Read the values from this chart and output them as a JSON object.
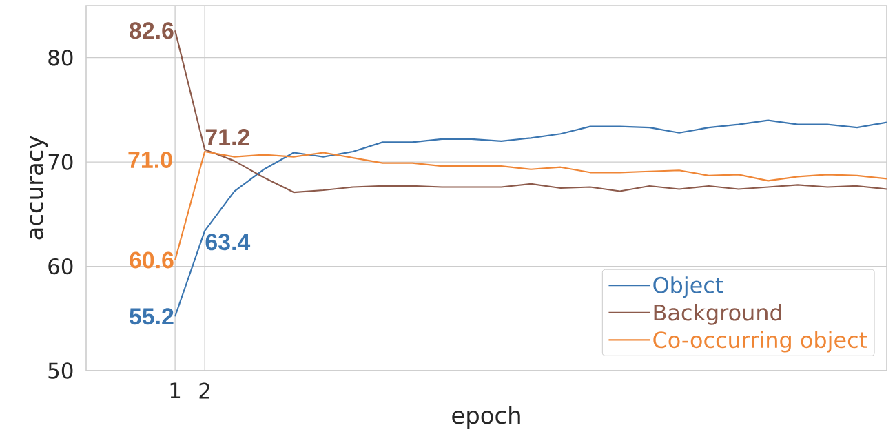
{
  "chart_data": {
    "type": "line",
    "xlabel": "epoch",
    "ylabel": "accuracy",
    "x": [
      1,
      2,
      3,
      4,
      5,
      6,
      7,
      8,
      9,
      10,
      11,
      12,
      13,
      14,
      15,
      16,
      17,
      18,
      19,
      20,
      21,
      22,
      23,
      24,
      25
    ],
    "xlim": [
      -2,
      25
    ],
    "xticks": [
      1,
      2
    ],
    "ylim": [
      50,
      85
    ],
    "yticks": [
      50,
      60,
      70,
      80
    ],
    "grid": true,
    "legend": "bottom right",
    "line_style": "solid",
    "series": [
      {
        "name": "Object",
        "color": "#3a75b0",
        "values": [
          55.2,
          63.4,
          67.2,
          69.3,
          70.9,
          70.5,
          71.0,
          71.9,
          71.9,
          72.2,
          72.2,
          72.0,
          72.3,
          72.7,
          73.4,
          73.4,
          73.3,
          72.8,
          73.3,
          73.6,
          74.0,
          73.6,
          73.6,
          73.3,
          73.8
        ],
        "value_labels": [
          "55.2",
          "63.4",
          null,
          null,
          null,
          null,
          null,
          null,
          null,
          null,
          null,
          null,
          null,
          null,
          null,
          null,
          null,
          null,
          null,
          null,
          null,
          null,
          null,
          null,
          null
        ]
      },
      {
        "name": "Background",
        "color": "#8c5a4b",
        "values": [
          82.6,
          71.2,
          70.1,
          68.5,
          67.1,
          67.3,
          67.6,
          67.7,
          67.7,
          67.6,
          67.6,
          67.6,
          67.9,
          67.5,
          67.6,
          67.2,
          67.7,
          67.4,
          67.7,
          67.4,
          67.6,
          67.8,
          67.6,
          67.7,
          67.4
        ],
        "value_labels": [
          "82.6",
          "71.2",
          null,
          null,
          null,
          null,
          null,
          null,
          null,
          null,
          null,
          null,
          null,
          null,
          null,
          null,
          null,
          null,
          null,
          null,
          null,
          null,
          null,
          null,
          null
        ]
      },
      {
        "name": "Co-occurring object",
        "color": "#ef8636",
        "values": [
          60.6,
          71.0,
          70.5,
          70.7,
          70.5,
          70.9,
          70.4,
          69.9,
          69.9,
          69.6,
          69.6,
          69.6,
          69.3,
          69.5,
          69.0,
          69.0,
          69.1,
          69.2,
          68.7,
          68.8,
          68.2,
          68.6,
          68.8,
          68.7,
          68.4
        ],
        "value_labels": [
          "60.6",
          "71.0",
          null,
          null,
          null,
          null,
          null,
          null,
          null,
          null,
          null,
          null,
          null,
          null,
          null,
          null,
          null,
          null,
          null,
          null,
          null,
          null,
          null,
          null,
          null
        ]
      }
    ]
  }
}
